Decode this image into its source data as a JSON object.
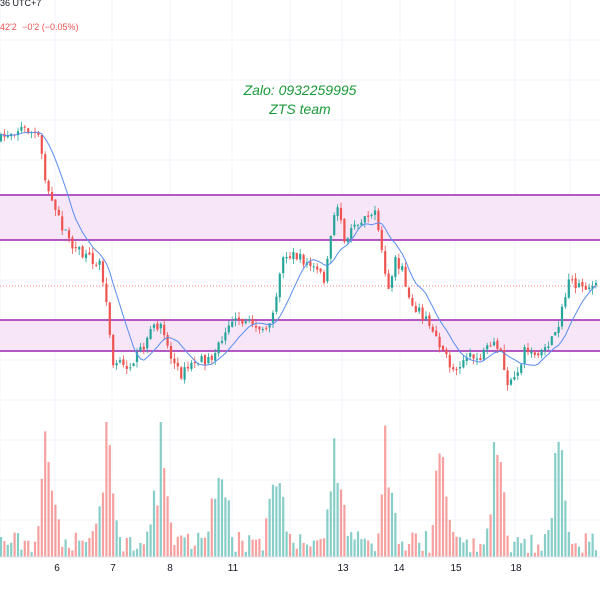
{
  "header": {
    "time_text": "36 UTC+7",
    "price_text": "42'2",
    "change_text": "−0'2 (−0.05%)"
  },
  "watermark": {
    "line1": "Zalo: 0932259995",
    "line2": "ZTS team"
  },
  "colors": {
    "up": "#26a69a",
    "down": "#ef5350",
    "zone_border": "#9c27b0",
    "zone_fill": "#f6e6f8",
    "ma": "#5b8def",
    "watermark": "#1a9a38"
  },
  "chart_data": {
    "type": "candlestick",
    "x_tick_labels": [
      "6",
      "7",
      "8",
      "11",
      "13",
      "14",
      "15",
      "18"
    ],
    "zones": [
      {
        "name": "upper-zone"
      },
      {
        "name": "lower-zone"
      }
    ],
    "moving_average": true,
    "volume_panel": true,
    "grid": true
  }
}
